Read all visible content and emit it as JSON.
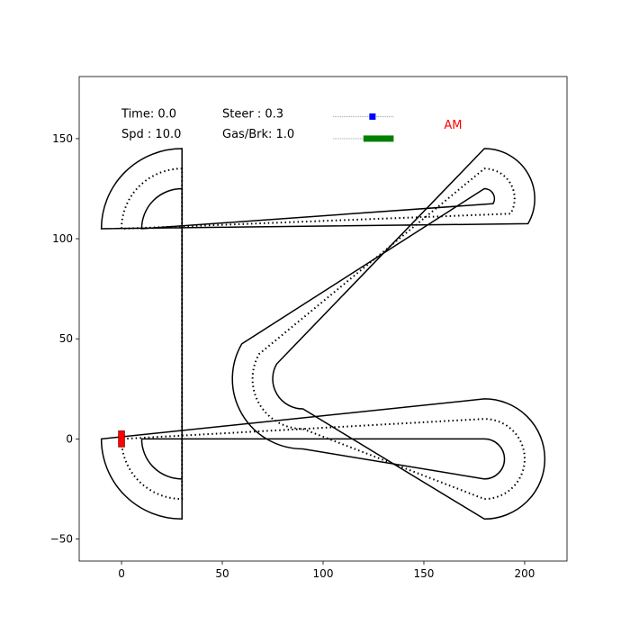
{
  "chart_data": {
    "type": "line",
    "title": "",
    "xlabel": "",
    "ylabel": "",
    "xlim": [
      -21,
      221
    ],
    "ylim": [
      -61,
      181
    ],
    "x_ticks": [
      0,
      50,
      100,
      150,
      200
    ],
    "y_ticks": [
      -50,
      0,
      50,
      100,
      150
    ],
    "grid": false,
    "hud": {
      "time_text": "Time: 0.0",
      "speed_text": "Spd : 10.0",
      "steer_text": "Steer  : 0.3",
      "gas_text": "Gas/Brk: 1.0",
      "mode_text": "AM",
      "steer_value": 0.3,
      "gas_brake_value": 1.0,
      "steer_slider_range": [
        105,
        135
      ],
      "gas_slider_range": [
        105,
        135
      ],
      "slider_y": {
        "steer": 161,
        "gas": 150
      }
    },
    "car": {
      "x": 0,
      "y": 0,
      "width": 3,
      "length": 8
    },
    "track": {
      "centerline": {
        "corners": [
          {
            "c": [
              30,
              105
            ],
            "r": 30,
            "a0": 90,
            "a1": 180
          },
          {
            "c": [
              180,
              120
            ],
            "r": 15,
            "a0": -30,
            "a1": 90
          },
          {
            "c": [
              90,
              30
            ],
            "r": 25,
            "a0": 150,
            "a1": 270
          },
          {
            "c": [
              180,
              -10
            ],
            "r": 20,
            "a0": -90,
            "a1": 90
          },
          {
            "c": [
              30,
              0
            ],
            "r": 30,
            "a0": 180,
            "a1": 270
          }
        ]
      },
      "outer_boundary": {
        "corners": [
          {
            "c": [
              30,
              105
            ],
            "r": 40,
            "a0": 90,
            "a1": 180
          },
          {
            "c": [
              180,
              120
            ],
            "r": 25,
            "a0": -30,
            "a1": 90
          },
          {
            "c": [
              90,
              30
            ],
            "r": 15,
            "a0": 150,
            "a1": 270
          },
          {
            "c": [
              180,
              -10
            ],
            "r": 30,
            "a0": -90,
            "a1": 90
          },
          {
            "c": [
              30,
              0
            ],
            "r": 40,
            "a0": 180,
            "a1": 270
          }
        ]
      },
      "inner_boundary": {
        "corners": [
          {
            "c": [
              30,
              105
            ],
            "r": 20,
            "a0": 90,
            "a1": 180
          },
          {
            "c": [
              180,
              120
            ],
            "r": 5,
            "a0": -30,
            "a1": 90
          },
          {
            "c": [
              90,
              30
            ],
            "r": 35,
            "a0": 150,
            "a1": 270
          },
          {
            "c": [
              180,
              -10
            ],
            "r": 10,
            "a0": -90,
            "a1": 90
          },
          {
            "c": [
              30,
              0
            ],
            "r": 20,
            "a0": 180,
            "a1": 270
          }
        ]
      }
    },
    "colors": {
      "boundary": "#000000",
      "centerline": "#000000",
      "car": "#ff0000",
      "steer_marker": "#0000ff",
      "gas_bar": "#008000",
      "slider_track": "#aaaaaa",
      "mode_text": "#ff0000"
    }
  }
}
